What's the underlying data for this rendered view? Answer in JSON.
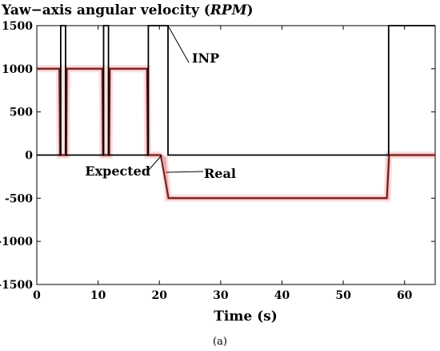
{
  "chart_data": {
    "type": "line",
    "title": {
      "prefix": "Yaw",
      "dash": "−",
      "middle": "axis angular velocity (",
      "unit": "RPM",
      "suffix": ")"
    },
    "xlabel": "Time (s)",
    "ylabel": "",
    "xlim": [
      0,
      65
    ],
    "ylim": [
      -1500,
      1500
    ],
    "xticks": [
      0,
      10,
      20,
      30,
      40,
      50,
      60
    ],
    "yticks": [
      1500,
      1000,
      500,
      0,
      -500,
      -1000,
      -1500
    ],
    "grid": false,
    "series": [
      {
        "name": "INP",
        "color": "#000000",
        "x": [
          0,
          3.9,
          3.9,
          4.7,
          4.7,
          10.9,
          10.9,
          11.7,
          11.7,
          18.2,
          18.2,
          21.4,
          21.4,
          57.4,
          57.4,
          65
        ],
        "y": [
          0,
          0,
          1500,
          1500,
          0,
          0,
          1500,
          1500,
          0,
          0,
          1500,
          1500,
          0,
          0,
          1500,
          1500
        ]
      },
      {
        "name": "Expected",
        "color": "#cc0000",
        "x": [
          0,
          3.7,
          3.8,
          4.8,
          4.9,
          10.7,
          10.8,
          11.8,
          11.9,
          18.0,
          18.1,
          19.9,
          20.8,
          21.4,
          57.2,
          57.4,
          58.0,
          65
        ],
        "y": [
          1000,
          1000,
          0,
          0,
          1000,
          1000,
          0,
          0,
          1000,
          1000,
          0,
          0,
          -40,
          -500,
          -500,
          0,
          0,
          0
        ]
      },
      {
        "name": "Real",
        "color": "#6b1a1a",
        "x": [
          0,
          3.7,
          3.8,
          4.8,
          4.9,
          10.7,
          10.8,
          11.8,
          11.9,
          18.0,
          18.1,
          20.2,
          21.5,
          57.1,
          57.5,
          65
        ],
        "y": [
          1000,
          1000,
          0,
          0,
          1000,
          1000,
          0,
          0,
          1000,
          1000,
          0,
          0,
          -500,
          -500,
          0,
          0
        ]
      }
    ],
    "annotations": [
      {
        "text": "INP",
        "target": "INP",
        "at": [
          21.4,
          1500
        ]
      },
      {
        "text": "Expected",
        "target": "Expected",
        "at": [
          20.4,
          0
        ]
      },
      {
        "text": "Real",
        "target": "Real",
        "at": [
          21.1,
          -200
        ]
      }
    ]
  },
  "caption": "(a)"
}
